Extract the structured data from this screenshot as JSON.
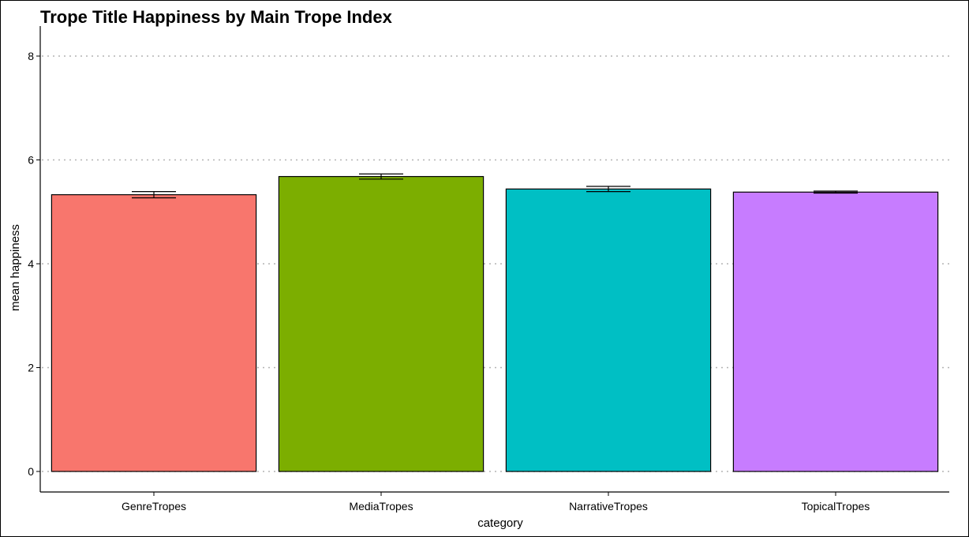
{
  "chart_data": {
    "type": "bar",
    "title": "Trope Title Happiness by Main Trope Index",
    "xlabel": "category",
    "ylabel": "mean happiness",
    "categories": [
      "GenreTropes",
      "MediaTropes",
      "NarrativeTropes",
      "TopicalTropes"
    ],
    "values": [
      5.33,
      5.68,
      5.44,
      5.38
    ],
    "error": [
      {
        "low": 5.27,
        "high": 5.39
      },
      {
        "low": 5.63,
        "high": 5.73
      },
      {
        "low": 5.39,
        "high": 5.49
      },
      {
        "low": 5.36,
        "high": 5.4
      }
    ],
    "colors": [
      "#F8766D",
      "#7CAE00",
      "#00BFC4",
      "#C77CFF"
    ],
    "ylim": [
      0,
      8.4
    ],
    "yticks": [
      0,
      2,
      4,
      6,
      8
    ],
    "grid": "horizontal dotted",
    "legend": "none"
  }
}
